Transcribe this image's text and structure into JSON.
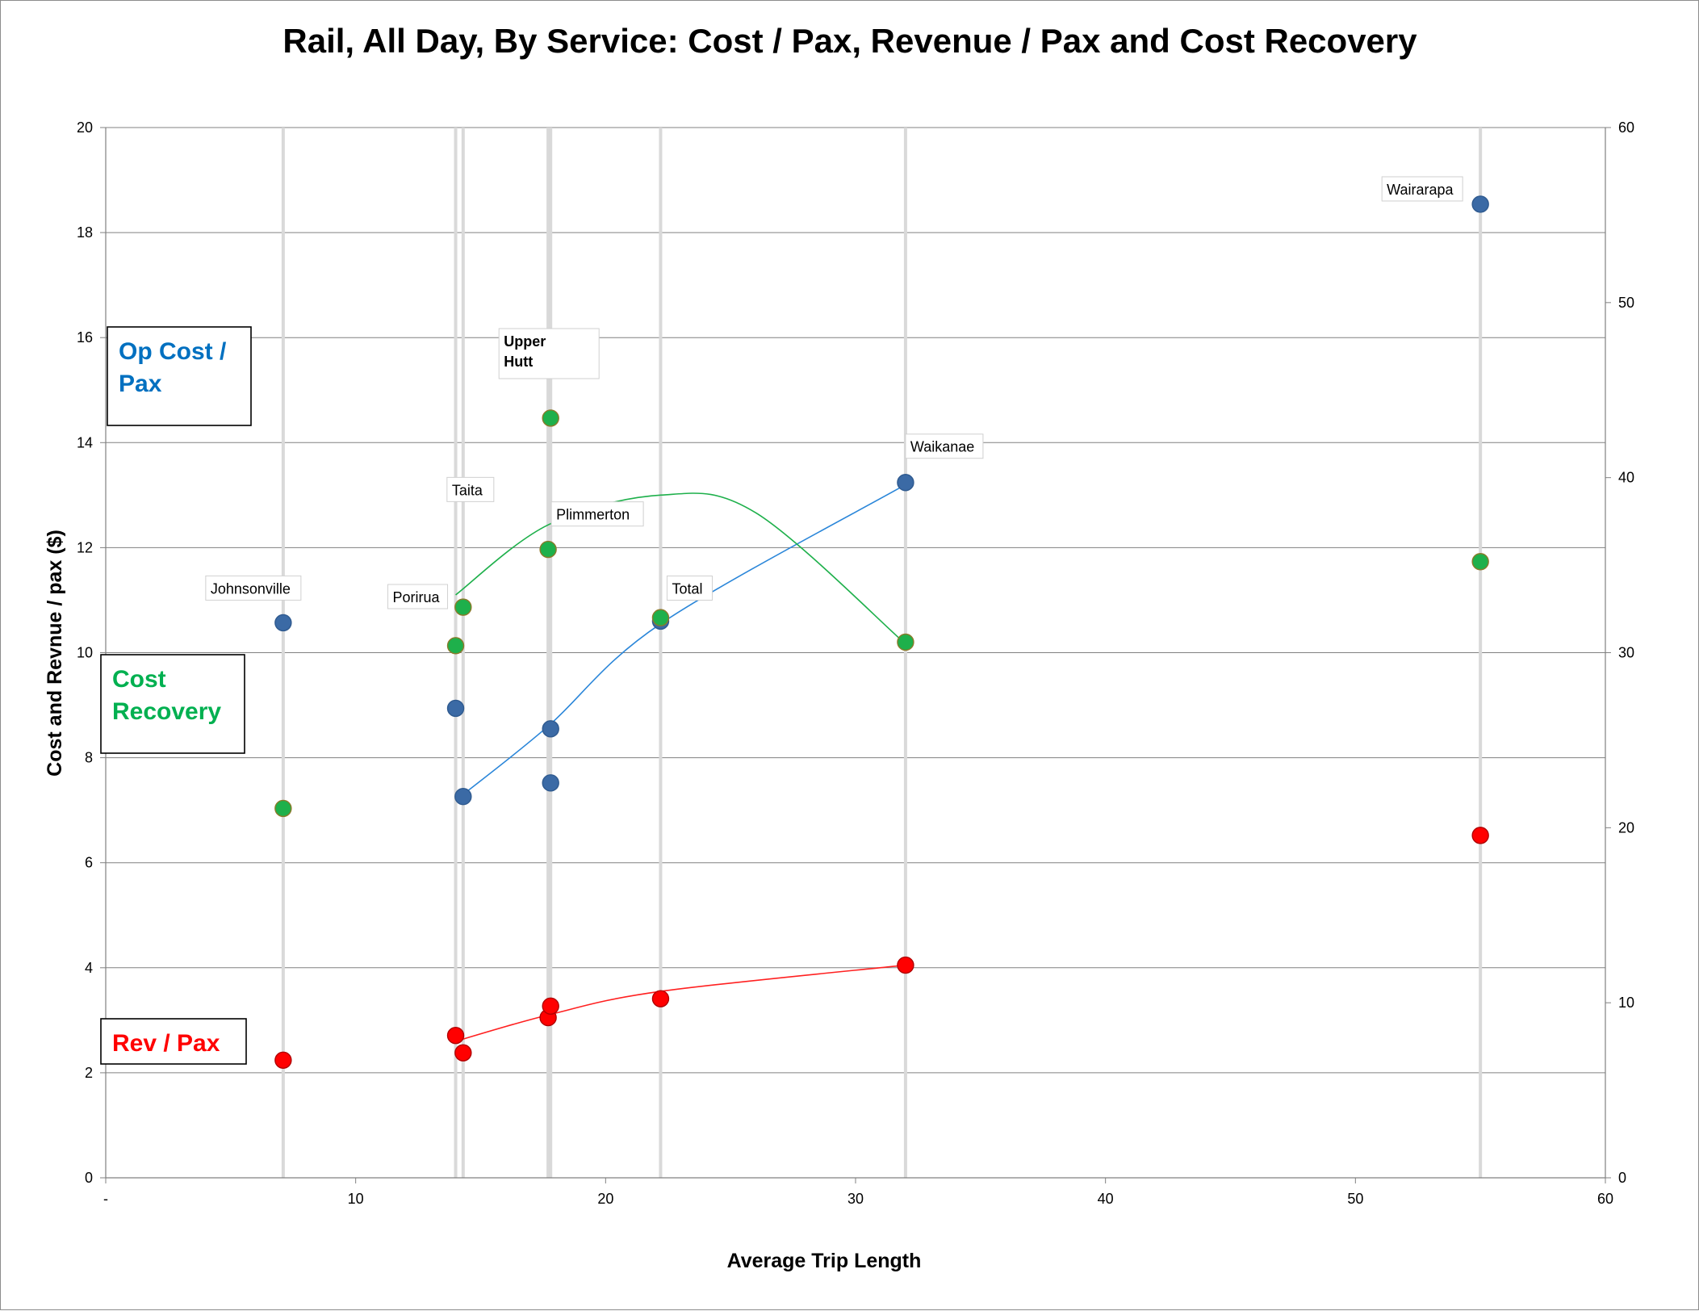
{
  "chart_data": {
    "type": "scatter",
    "title": "Rail, All Day, By Service: Cost / Pax, Revenue / Pax and Cost Recovery",
    "xlabel": "Average Trip Length",
    "ylabel": "Cost and Revnue / pax ($)",
    "xlim": [
      0,
      60
    ],
    "ylim": [
      0,
      20
    ],
    "y2lim": [
      0,
      60
    ],
    "x_ticks": [
      {
        "value": 0,
        "label": "-"
      },
      {
        "value": 10,
        "label": "10"
      },
      {
        "value": 20,
        "label": "20"
      },
      {
        "value": 30,
        "label": "30"
      },
      {
        "value": 40,
        "label": "40"
      },
      {
        "value": 50,
        "label": "50"
      },
      {
        "value": 60,
        "label": "60"
      }
    ],
    "y_ticks": [
      "0",
      "2",
      "4",
      "6",
      "8",
      "10",
      "12",
      "14",
      "16",
      "18",
      "20"
    ],
    "y2_ticks": [
      "0",
      "10",
      "20",
      "30",
      "40",
      "50",
      "60"
    ],
    "grid": true,
    "colors": {
      "op_cost": "#3b6aa5",
      "cost_recovery": "#1eb04b",
      "rev": "#ff0000",
      "trend_op_cost": "#2a86d9",
      "trend_cost_recovery": "#1eb04b",
      "trend_rev": "#ff2020",
      "vline": "#d9d9d9",
      "grid": "#808080"
    },
    "x_positions": [
      7.1,
      14.0,
      14.3,
      17.7,
      17.8,
      22.2,
      32.0,
      55.0
    ],
    "series": [
      {
        "name": "Op Cost / Pax",
        "axis": "left",
        "points": [
          {
            "x": 7.1,
            "y": 10.57
          },
          {
            "x": 14.0,
            "y": 8.94
          },
          {
            "x": 14.3,
            "y": 7.26
          },
          {
            "x": 17.8,
            "y": 8.55
          },
          {
            "x": 17.8,
            "y": 7.52
          },
          {
            "x": 22.2,
            "y": 10.6
          },
          {
            "x": 32.0,
            "y": 13.24
          },
          {
            "x": 55.0,
            "y": 18.54
          }
        ]
      },
      {
        "name": "Cost Recovery",
        "axis": "right",
        "points": [
          {
            "x": 7.1,
            "y": 21.1
          },
          {
            "x": 14.0,
            "y": 30.4
          },
          {
            "x": 14.3,
            "y": 32.6
          },
          {
            "x": 17.7,
            "y": 35.9
          },
          {
            "x": 17.8,
            "y": 43.4
          },
          {
            "x": 22.2,
            "y": 32.0
          },
          {
            "x": 32.0,
            "y": 30.6
          },
          {
            "x": 55.0,
            "y": 35.2
          }
        ]
      },
      {
        "name": "Rev / Pax",
        "axis": "left",
        "points": [
          {
            "x": 7.1,
            "y": 2.24
          },
          {
            "x": 14.0,
            "y": 2.71
          },
          {
            "x": 14.3,
            "y": 2.38
          },
          {
            "x": 17.7,
            "y": 3.05
          },
          {
            "x": 17.8,
            "y": 3.27
          },
          {
            "x": 22.2,
            "y": 3.41
          },
          {
            "x": 32.0,
            "y": 4.05
          },
          {
            "x": 55.0,
            "y": 6.52
          }
        ]
      }
    ],
    "trendlines": [
      {
        "series": "Op Cost / Pax",
        "axis": "left",
        "points": [
          [
            14.3,
            7.3
          ],
          [
            17.7,
            8.6
          ],
          [
            22.2,
            10.55
          ],
          [
            32.0,
            13.2
          ]
        ]
      },
      {
        "series": "Cost Recovery",
        "axis": "right",
        "points": [
          [
            14.0,
            33.3
          ],
          [
            17.7,
            37.3
          ],
          [
            22.2,
            39.0
          ],
          [
            26.0,
            38.0
          ],
          [
            32.0,
            30.5
          ]
        ]
      },
      {
        "series": "Rev / Pax",
        "axis": "left",
        "points": [
          [
            14.0,
            2.6
          ],
          [
            17.7,
            3.1
          ],
          [
            22.2,
            3.55
          ],
          [
            32.0,
            4.05
          ]
        ]
      }
    ],
    "annotations": [
      {
        "text": "Johnsonville",
        "x": 7.1,
        "y": 10.57,
        "axis": "left",
        "dx": -90,
        "dy": -36,
        "w": 118,
        "bold": false
      },
      {
        "text": "Porirua",
        "x": 14.0,
        "y": 10.1,
        "axis": "left",
        "dx": -78,
        "dy": -56,
        "w": 74,
        "bold": false
      },
      {
        "text": "Taita",
        "x": 14.3,
        "y": 12.6,
        "axis": "left",
        "dx": -14,
        "dy": -26,
        "w": 58,
        "bold": false
      },
      {
        "text": [
          "Upper",
          "Hutt"
        ],
        "x": 17.8,
        "y": 14.45,
        "axis": "left",
        "dx": -58,
        "dy": -90,
        "w": 124,
        "bold": true
      },
      {
        "text": "Plimmerton",
        "x": 17.7,
        "y": 11.95,
        "axis": "left",
        "dx": 10,
        "dy": -38,
        "w": 114,
        "bold": false
      },
      {
        "text": "Total",
        "x": 22.2,
        "y": 10.6,
        "axis": "left",
        "dx": 14,
        "dy": -34,
        "w": 56,
        "bold": false
      },
      {
        "text": "Waikanae",
        "x": 32.0,
        "y": 13.24,
        "axis": "left",
        "dx": 6,
        "dy": -38,
        "w": 96,
        "bold": false
      },
      {
        "text": "Wairarapa",
        "x": 55.0,
        "y": 18.54,
        "axis": "left",
        "dx": -116,
        "dy": -12,
        "w": 100,
        "bold": false
      }
    ],
    "series_boxes": [
      {
        "lines": [
          "Op Cost /",
          "Pax"
        ],
        "color": "#0070c0"
      },
      {
        "lines": [
          "Cost",
          "Recovery"
        ],
        "color": "#00b050"
      },
      {
        "lines": [
          "Rev / Pax"
        ],
        "color": "#ff0000"
      }
    ]
  }
}
